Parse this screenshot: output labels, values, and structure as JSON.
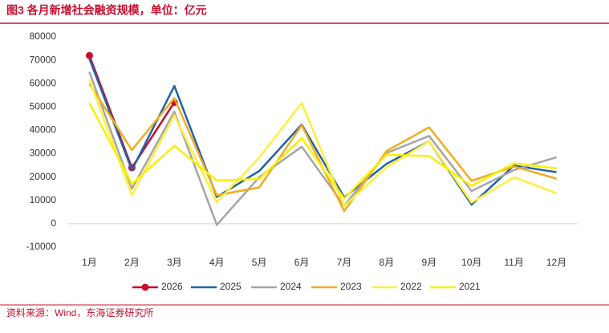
{
  "chart_data": {
    "type": "line",
    "title": "图3  各月新增社会融资规模，单位：亿元",
    "source": "资料来源：Wind，东海证券研究所",
    "categories": [
      "1月",
      "2月",
      "3月",
      "4月",
      "5月",
      "6月",
      "7月",
      "8月",
      "9月",
      "10月",
      "11月",
      "12月"
    ],
    "series": [
      {
        "name": "2026",
        "color": "#c8102e",
        "markers": true,
        "values": [
          72000,
          24000,
          52000,
          null,
          null,
          null,
          null,
          null,
          null,
          null,
          null,
          null
        ]
      },
      {
        "name": "2025",
        "color": "#1f63a8",
        "values": [
          70600,
          23000,
          59000,
          11500,
          22600,
          42500,
          11300,
          25700,
          35300,
          8200,
          24900,
          22100
        ]
      },
      {
        "name": "2024",
        "color": "#a6a6a6",
        "values": [
          65000,
          15000,
          48000,
          -500,
          20000,
          33000,
          7700,
          30300,
          37600,
          14000,
          23000,
          28500
        ]
      },
      {
        "name": "2023",
        "color": "#f2ac1e",
        "values": [
          60000,
          31600,
          53800,
          12200,
          15600,
          42200,
          5400,
          31200,
          41300,
          18400,
          24500,
          19300
        ]
      },
      {
        "name": "2022",
        "color": "#ffef3a",
        "values": [
          61700,
          12200,
          46500,
          9300,
          28400,
          51700,
          7600,
          24300,
          35300,
          9100,
          19900,
          13100
        ]
      },
      {
        "name": "2021",
        "color": "#f7f100",
        "values": [
          51700,
          17100,
          33400,
          18500,
          19200,
          36700,
          10800,
          29600,
          29000,
          16200,
          25900,
          23700
        ]
      }
    ],
    "ylim": [
      -10000,
      80000
    ],
    "yticks": [
      -10000,
      0,
      10000,
      20000,
      30000,
      40000,
      50000,
      60000,
      70000,
      80000
    ],
    "grid": false
  }
}
